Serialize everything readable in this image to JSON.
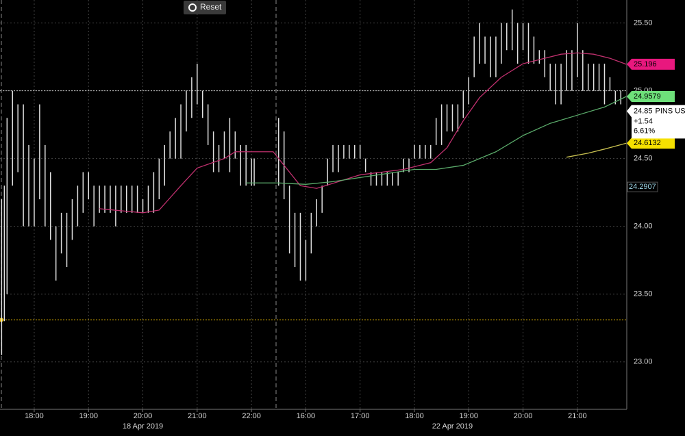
{
  "chart_data": {
    "type": "hl_bar",
    "ticker": "PINS US",
    "reset": "Reset",
    "xlim": [
      -0.63,
      10.91
    ],
    "ylim": [
      22.65,
      25.67
    ],
    "xticks": [
      {
        "value": 0,
        "label": "18:00"
      },
      {
        "value": 1,
        "label": "19:00"
      },
      {
        "value": 2,
        "label": "20:00"
      },
      {
        "value": 3,
        "label": "21:00"
      },
      {
        "value": 4,
        "label": "22:00"
      },
      {
        "value": 5,
        "label": "16:00"
      },
      {
        "value": 6,
        "label": "17:00"
      },
      {
        "value": 7,
        "label": "18:00"
      },
      {
        "value": 8,
        "label": "19:00"
      },
      {
        "value": 9,
        "label": "20:00"
      },
      {
        "value": 10,
        "label": "21:00"
      }
    ],
    "date_labels": [
      {
        "value": 2,
        "label": "18 Apr 2019"
      },
      {
        "value": 7.7,
        "label": "22 Apr 2019"
      }
    ],
    "yticks": [
      {
        "value": 23,
        "label": "23.00"
      },
      {
        "value": 23.5,
        "label": "23.50"
      },
      {
        "value": 24,
        "label": "24.00"
      },
      {
        "value": 24.5,
        "label": "24.50"
      },
      {
        "value": 25,
        "label": "25.00"
      },
      {
        "value": 25.5,
        "label": "25.50"
      }
    ],
    "grid": true,
    "bar_color": "#e0e0e0",
    "reference_lines": [
      {
        "value": 25.0,
        "color": "#c8c8c8"
      },
      {
        "value": 23.31,
        "color": "#f0c000"
      }
    ],
    "x": [
      -0.6,
      -0.55,
      -0.5,
      -0.4,
      -0.3,
      -0.2,
      -0.1,
      0,
      0.1,
      0.2,
      0.3,
      0.4,
      0.5,
      0.6,
      0.7,
      0.8,
      0.9,
      1.0,
      1.1,
      1.2,
      1.3,
      1.4,
      1.5,
      1.6,
      1.7,
      1.8,
      1.9,
      2.0,
      2.1,
      2.2,
      2.3,
      2.4,
      2.5,
      2.6,
      2.7,
      2.8,
      2.9,
      3.0,
      3.1,
      3.2,
      3.3,
      3.4,
      3.5,
      3.6,
      3.7,
      3.8,
      3.9,
      4.0,
      4.05,
      4.5,
      4.6,
      4.7,
      4.8,
      4.9,
      5.0,
      5.1,
      5.2,
      5.3,
      5.4,
      5.5,
      5.6,
      5.7,
      5.8,
      5.9,
      6.0,
      6.1,
      6.2,
      6.3,
      6.4,
      6.5,
      6.6,
      6.7,
      6.8,
      6.9,
      7.0,
      7.1,
      7.2,
      7.3,
      7.4,
      7.5,
      7.6,
      7.7,
      7.8,
      7.9,
      8.0,
      8.1,
      8.2,
      8.3,
      8.4,
      8.5,
      8.6,
      8.7,
      8.8,
      8.9,
      9.0,
      9.1,
      9.2,
      9.3,
      9.4,
      9.5,
      9.6,
      9.7,
      9.8,
      9.9,
      10.0,
      10.1,
      10.2,
      10.3,
      10.4,
      10.5,
      10.6,
      10.7,
      10.8
    ],
    "high": [
      24.2,
      24.3,
      24.8,
      25.0,
      24.9,
      24.9,
      24.6,
      24.5,
      24.9,
      24.6,
      24.4,
      24.0,
      24.1,
      24.1,
      24.2,
      24.3,
      24.4,
      24.4,
      24.3,
      24.3,
      24.3,
      24.3,
      24.3,
      24.3,
      24.3,
      24.3,
      24.3,
      24.2,
      24.3,
      24.4,
      24.5,
      24.6,
      24.7,
      24.8,
      24.9,
      25.0,
      25.1,
      25.2,
      25.0,
      24.9,
      24.7,
      24.6,
      24.7,
      24.8,
      24.7,
      24.6,
      24.6,
      24.5,
      24.5,
      24.8,
      24.7,
      24.3,
      24.1,
      24.1,
      23.9,
      24.1,
      24.2,
      24.3,
      24.5,
      24.6,
      24.6,
      24.6,
      24.6,
      24.6,
      24.6,
      24.5,
      24.4,
      24.4,
      24.4,
      24.4,
      24.4,
      24.4,
      24.5,
      24.5,
      24.6,
      24.6,
      24.6,
      24.6,
      24.8,
      24.9,
      24.9,
      24.9,
      24.9,
      25.0,
      25.1,
      25.4,
      25.5,
      25.4,
      25.4,
      25.4,
      25.5,
      25.5,
      25.6,
      25.5,
      25.5,
      25.5,
      25.4,
      25.3,
      25.3,
      25.2,
      25.2,
      25.2,
      25.3,
      25.3,
      25.5,
      25.3,
      25.2,
      25.2,
      25.2,
      25.2,
      25.1,
      25.0,
      25.0
    ],
    "low": [
      23.05,
      23.3,
      23.5,
      24.3,
      24.4,
      24.0,
      24.0,
      24.0,
      24.2,
      24.0,
      23.9,
      23.6,
      23.8,
      23.7,
      23.9,
      24.0,
      24.1,
      24.2,
      24.0,
      24.1,
      24.1,
      24.1,
      24.0,
      24.1,
      24.1,
      24.1,
      24.1,
      24.1,
      24.1,
      24.1,
      24.2,
      24.3,
      24.5,
      24.5,
      24.5,
      24.7,
      24.8,
      24.9,
      24.8,
      24.6,
      24.4,
      24.4,
      24.5,
      24.4,
      24.5,
      24.3,
      24.3,
      24.3,
      24.3,
      24.3,
      24.2,
      23.8,
      23.7,
      23.6,
      23.6,
      23.8,
      24.0,
      24.1,
      24.3,
      24.4,
      24.4,
      24.5,
      24.5,
      24.5,
      24.5,
      24.4,
      24.3,
      24.3,
      24.3,
      24.3,
      24.3,
      24.3,
      24.4,
      24.4,
      24.5,
      24.5,
      24.5,
      24.5,
      24.6,
      24.6,
      24.7,
      24.7,
      24.7,
      24.8,
      24.9,
      25.1,
      25.2,
      25.2,
      25.1,
      25.1,
      25.2,
      25.3,
      25.3,
      25.2,
      25.3,
      25.2,
      25.2,
      25.2,
      25.1,
      25.0,
      24.9,
      24.9,
      25.0,
      25.0,
      25.1,
      25.0,
      25.0,
      25.0,
      25.0,
      24.9,
      25.0,
      24.9,
      24.9
    ],
    "series": [
      {
        "color": "#c0306e",
        "label_color": "#e8187e",
        "label": 25.196,
        "x": [
          1.2,
          2.0,
          2.3,
          2.7,
          3.0,
          3.5,
          3.7,
          4.0,
          4.4,
          4.6,
          4.9,
          5.2,
          5.6,
          6.0,
          6.4,
          6.8,
          7.3,
          7.6,
          7.9,
          8.2,
          8.6,
          9.0,
          9.4,
          9.7,
          10.0,
          10.3,
          10.6,
          10.9
        ],
        "values": [
          24.13,
          24.1,
          24.12,
          24.3,
          24.43,
          24.5,
          24.55,
          24.55,
          24.55,
          24.45,
          24.3,
          24.28,
          24.33,
          24.38,
          24.4,
          24.42,
          24.47,
          24.58,
          24.78,
          24.95,
          25.1,
          25.2,
          25.24,
          25.27,
          25.28,
          25.27,
          25.24,
          25.196
        ]
      },
      {
        "color": "#5aaa6a",
        "label_color": "#6ee07a",
        "label": 24.9579,
        "x": [
          3.9,
          4.5,
          5.0,
          5.5,
          6.0,
          6.5,
          7.0,
          7.4,
          7.9,
          8.5,
          9.0,
          9.5,
          10.0,
          10.5,
          10.9
        ],
        "values": [
          24.32,
          24.32,
          24.31,
          24.33,
          24.36,
          24.39,
          24.42,
          24.42,
          24.45,
          24.55,
          24.67,
          24.76,
          24.82,
          24.88,
          24.9579
        ]
      },
      {
        "color": "#c8c050",
        "label_color": "#f5e000",
        "label": 24.6132,
        "x": [
          9.8,
          10.2,
          10.5,
          10.9
        ],
        "values": [
          24.51,
          24.54,
          24.57,
          24.6132
        ]
      }
    ],
    "extra_labels": [
      {
        "value": 24.2907,
        "color": "#9fd8e8"
      }
    ],
    "last_price": {
      "value": 24.85,
      "change": "+1.54",
      "change_pct": "6.61%"
    }
  }
}
